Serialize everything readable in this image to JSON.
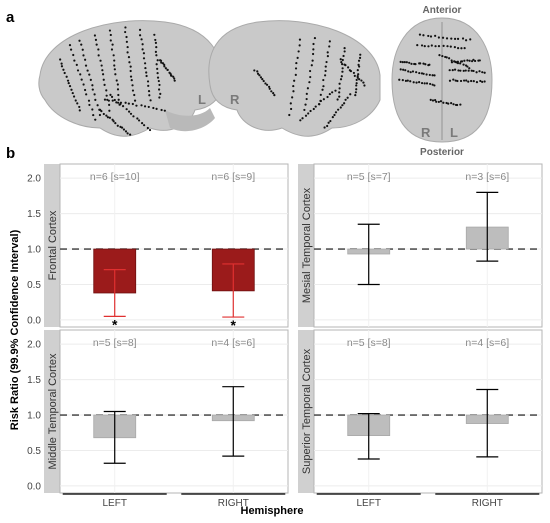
{
  "figure": {
    "label_a": "a",
    "label_b": "b"
  },
  "brain": {
    "left_label": "L",
    "right_label": "R",
    "anterior_label": "Anterior",
    "posterior_label": "Posterior",
    "top_r_label": "R",
    "top_l_label": "L"
  },
  "colors": {
    "significant": "#9b1b1b",
    "significant_error": "#e03030",
    "nonsignificant": "#bdbdbd",
    "error_bar": "#000000",
    "reference_line": "#555555",
    "strip_bg": "#d0d0d0",
    "brain_fill": "#c9c9c9",
    "electrode": "#111111"
  },
  "chart_data": {
    "type": "bar",
    "facet_layout": "2x2",
    "xlabel": "Hemisphere",
    "ylabel": "Risk Ratio (99.9% Confidence Interval)",
    "categories": [
      "LEFT",
      "RIGHT"
    ],
    "ylim": [
      -0.1,
      2.2
    ],
    "yticks": [
      "0.0",
      "0.5",
      "1.0",
      "1.5",
      "2.0"
    ],
    "reference": 1.0,
    "grid": true,
    "panels": [
      {
        "title": "Frontal Cortex",
        "bars": [
          {
            "category": "LEFT",
            "value": 0.38,
            "ci_low": 0.05,
            "ci_high": 0.71,
            "n_label": "n=6 [s=10]",
            "significant": true,
            "marker": "*"
          },
          {
            "category": "RIGHT",
            "value": 0.41,
            "ci_low": 0.04,
            "ci_high": 0.79,
            "n_label": "n=6 [s=9]",
            "significant": true,
            "marker": "*"
          }
        ]
      },
      {
        "title": "Mesial Temporal Cortex",
        "bars": [
          {
            "category": "LEFT",
            "value": 0.93,
            "ci_low": 0.5,
            "ci_high": 1.35,
            "n_label": "n=5 [s=7]",
            "significant": false,
            "marker": ""
          },
          {
            "category": "RIGHT",
            "value": 1.31,
            "ci_low": 0.83,
            "ci_high": 1.8,
            "n_label": "n=3 [s=6]",
            "significant": false,
            "marker": ""
          }
        ]
      },
      {
        "title": "Middle Temporal Cortex",
        "bars": [
          {
            "category": "LEFT",
            "value": 0.68,
            "ci_low": 0.32,
            "ci_high": 1.05,
            "n_label": "n=5 [s=8]",
            "significant": false,
            "marker": ""
          },
          {
            "category": "RIGHT",
            "value": 0.92,
            "ci_low": 0.42,
            "ci_high": 1.4,
            "n_label": "n=4 [s=6]",
            "significant": false,
            "marker": ""
          }
        ]
      },
      {
        "title": "Superior Temporal Cortex",
        "bars": [
          {
            "category": "LEFT",
            "value": 0.71,
            "ci_low": 0.38,
            "ci_high": 1.02,
            "n_label": "n=5 [s=8]",
            "significant": false,
            "marker": ""
          },
          {
            "category": "RIGHT",
            "value": 0.88,
            "ci_low": 0.41,
            "ci_high": 1.36,
            "n_label": "n=4 [s=6]",
            "significant": false,
            "marker": ""
          }
        ]
      }
    ]
  }
}
